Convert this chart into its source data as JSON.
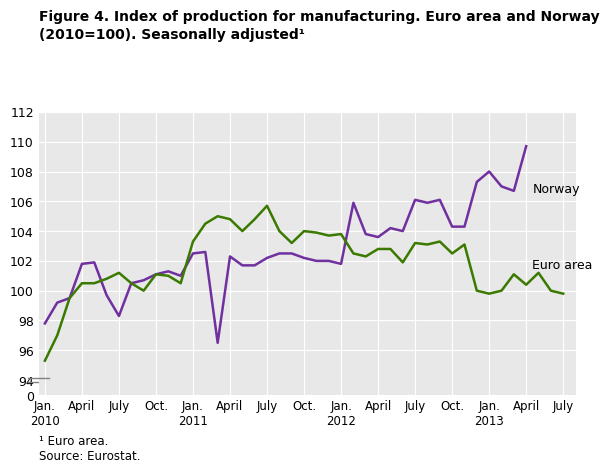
{
  "title": "Figure 4. Index of production for manufacturing. Euro area and Norway\n(2010=100). Seasonally adjusted¹",
  "footnote": "¹ Euro area.\nSource: Eurostat.",
  "norway_color": "#7030a0",
  "euroarea_color": "#3b7a00",
  "background_color": "#e8e8e8",
  "ylim_data_min": 94,
  "ylim_data_max": 112,
  "norway_label": "Norway",
  "euroarea_label": "Euro area",
  "xtick_labels": [
    "Jan.\n2010",
    "April",
    "July",
    "Oct.",
    "Jan.\n2011",
    "April",
    "July",
    "Oct.",
    "Jan.\n2012",
    "April",
    "July",
    "Oct.",
    "Jan.\n2013",
    "April",
    "July"
  ],
  "xtick_positions": [
    0,
    3,
    6,
    9,
    12,
    15,
    18,
    21,
    24,
    27,
    30,
    33,
    36,
    39,
    42
  ],
  "norway_data": [
    97.8,
    99.2,
    99.5,
    101.8,
    101.9,
    99.7,
    98.3,
    100.5,
    100.7,
    101.1,
    101.3,
    101.0,
    102.5,
    102.6,
    96.5,
    102.3,
    101.7,
    101.7,
    102.2,
    102.5,
    102.5,
    102.2,
    102.0,
    102.0,
    101.8,
    105.9,
    103.8,
    103.6,
    104.2,
    104.0,
    106.1,
    105.9,
    106.1,
    104.3,
    104.3,
    107.3,
    108.0,
    107.0,
    106.7,
    109.7
  ],
  "euroarea_data": [
    95.3,
    97.0,
    99.5,
    100.5,
    100.5,
    100.8,
    101.2,
    100.5,
    100.0,
    101.1,
    101.0,
    100.5,
    103.3,
    104.5,
    105.0,
    104.8,
    104.0,
    104.8,
    105.7,
    104.0,
    103.2,
    104.0,
    103.9,
    103.7,
    103.8,
    102.5,
    102.3,
    102.8,
    102.8,
    101.9,
    103.2,
    103.1,
    103.3,
    102.5,
    103.1,
    100.0,
    99.8,
    100.0,
    101.1,
    100.4,
    101.2,
    100.0,
    99.8
  ]
}
